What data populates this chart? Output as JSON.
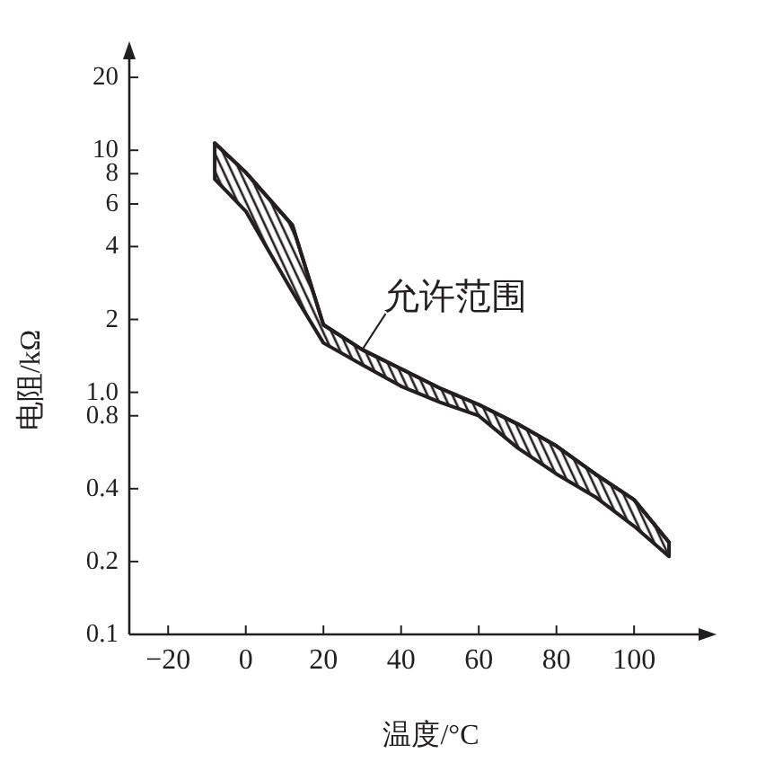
{
  "chart_data": {
    "type": "line",
    "xlabel": "温度/°C",
    "ylabel": "电阻/kΩ",
    "annotations": [
      {
        "text": "允许范围",
        "x": 30,
        "y": 1.5
      }
    ],
    "x": [
      -8,
      0,
      12,
      20,
      30,
      40,
      50,
      60,
      70,
      80,
      90,
      100,
      109
    ],
    "series": [
      {
        "color": "#231f20",
        "values": [
          10.7,
          8.1,
          4.9,
          1.9,
          1.5,
          1.25,
          1.04,
          0.89,
          0.74,
          0.6,
          0.46,
          0.36,
          0.24
        ],
        "upper": [
          10.7,
          8.1,
          4.9,
          1.9,
          1.5,
          1.25,
          1.04,
          0.89,
          0.74,
          0.6,
          0.46,
          0.36,
          0.24
        ],
        "lower": [
          7.6,
          5.6,
          2.6,
          1.6,
          1.3,
          1.06,
          0.91,
          0.8,
          0.59,
          0.46,
          0.37,
          0.28,
          0.21
        ]
      }
    ],
    "xlim": [
      -30,
      118
    ],
    "ylim": [
      0.1,
      25
    ],
    "log": true,
    "xticks": [
      {
        "value": -20,
        "label": "−20"
      },
      0,
      20,
      40,
      60,
      80,
      100
    ],
    "yticks": [
      0.1,
      0.2,
      0.4,
      0.8,
      {
        "value": 1,
        "label": "1.0"
      },
      2,
      4,
      6,
      8,
      10,
      20
    ]
  }
}
